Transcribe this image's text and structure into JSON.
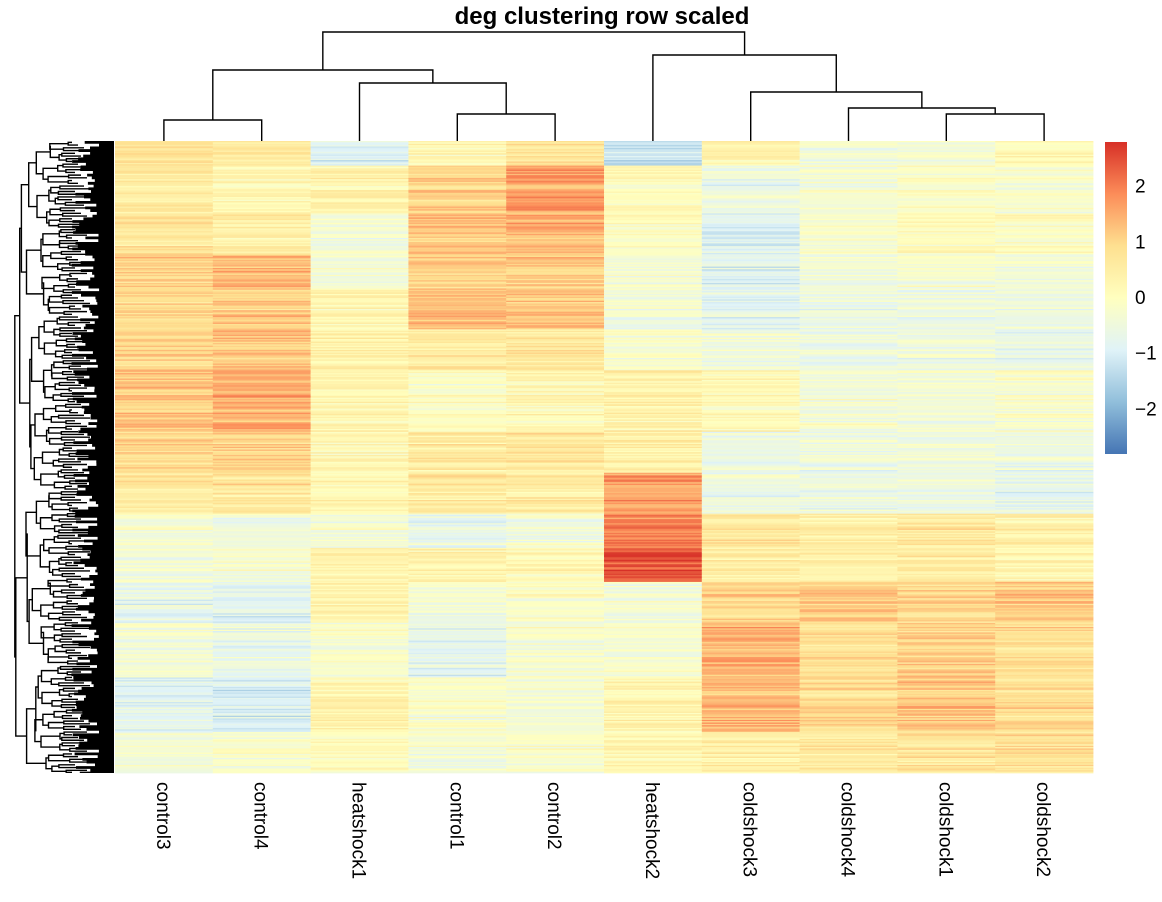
{
  "chart_data": {
    "type": "heatmap",
    "title": "deg clustering row scaled",
    "columns": [
      "control3",
      "control4",
      "heatshock1",
      "control1",
      "control2",
      "heatshock2",
      "coldshock3",
      "coldshock4",
      "coldshock1",
      "coldshock2"
    ],
    "color_scale": {
      "min": -2.8,
      "max": 2.8,
      "ticks": [
        2,
        1,
        0,
        -1,
        -2
      ],
      "tick_labels": [
        "2",
        "1",
        "0",
        "−1",
        "−2"
      ],
      "colors": [
        "#4575b4",
        "#91bfdb",
        "#e0f3f8",
        "#ffffbf",
        "#fee090",
        "#fc8d59",
        "#d73027"
      ]
    },
    "row_blocks": [
      {
        "rows": 18,
        "values": [
          0.8,
          0.6,
          -0.9,
          0.2,
          0.7,
          -1.2,
          0.3,
          -0.4,
          -0.3,
          0.1
        ]
      },
      {
        "rows": 35,
        "values": [
          0.5,
          0.2,
          0.3,
          1.1,
          1.6,
          0.1,
          -0.6,
          -0.3,
          -0.1,
          -0.2
        ]
      },
      {
        "rows": 30,
        "values": [
          0.7,
          0.4,
          -0.4,
          1.2,
          1.4,
          -0.1,
          -1.0,
          -0.2,
          0.0,
          -0.1
        ]
      },
      {
        "rows": 25,
        "values": [
          1.0,
          1.3,
          -0.3,
          1.0,
          1.1,
          -0.3,
          -0.9,
          -0.4,
          -0.3,
          -0.4
        ]
      },
      {
        "rows": 30,
        "values": [
          0.9,
          1.1,
          0.2,
          1.3,
          1.2,
          -0.5,
          -0.8,
          -0.6,
          -0.6,
          -0.5
        ]
      },
      {
        "rows": 30,
        "values": [
          1.1,
          1.3,
          0.4,
          0.6,
          0.7,
          -0.2,
          -0.4,
          -0.5,
          -0.5,
          -0.6
        ]
      },
      {
        "rows": 45,
        "values": [
          1.2,
          1.5,
          0.3,
          -0.1,
          0.2,
          0.4,
          0.1,
          -0.3,
          -0.4,
          -0.2
        ]
      },
      {
        "rows": 30,
        "values": [
          0.9,
          1.0,
          0.2,
          0.5,
          0.6,
          0.4,
          -0.6,
          -0.5,
          -0.5,
          -0.6
        ]
      },
      {
        "rows": 30,
        "values": [
          0.6,
          0.7,
          0.2,
          0.6,
          0.5,
          1.6,
          -0.5,
          -0.5,
          -0.5,
          -0.7
        ]
      },
      {
        "rows": 25,
        "values": [
          -0.3,
          -0.4,
          -0.3,
          -0.6,
          -0.4,
          2.0,
          0.8,
          0.5,
          0.7,
          0.4
        ]
      },
      {
        "rows": 25,
        "values": [
          -0.3,
          -0.2,
          0.3,
          0.4,
          0.2,
          2.4,
          0.5,
          0.4,
          0.6,
          0.3
        ]
      },
      {
        "rows": 30,
        "values": [
          -0.7,
          -0.8,
          0.4,
          -0.4,
          -0.1,
          -0.4,
          1.0,
          1.2,
          1.0,
          1.2
        ]
      },
      {
        "rows": 40,
        "values": [
          -0.3,
          -0.6,
          -0.2,
          -0.8,
          -0.2,
          -0.3,
          1.5,
          0.9,
          1.1,
          0.9
        ]
      },
      {
        "rows": 40,
        "values": [
          -0.9,
          -1.0,
          0.3,
          -0.2,
          -0.3,
          0.3,
          1.3,
          0.9,
          1.2,
          0.9
        ]
      },
      {
        "rows": 30,
        "values": [
          -0.4,
          -0.2,
          0.0,
          -0.3,
          -0.2,
          0.2,
          0.4,
          0.6,
          0.6,
          0.8
        ]
      }
    ],
    "legend_placement": "right",
    "row_dendrogram": "left",
    "column_dendrogram": "top"
  }
}
